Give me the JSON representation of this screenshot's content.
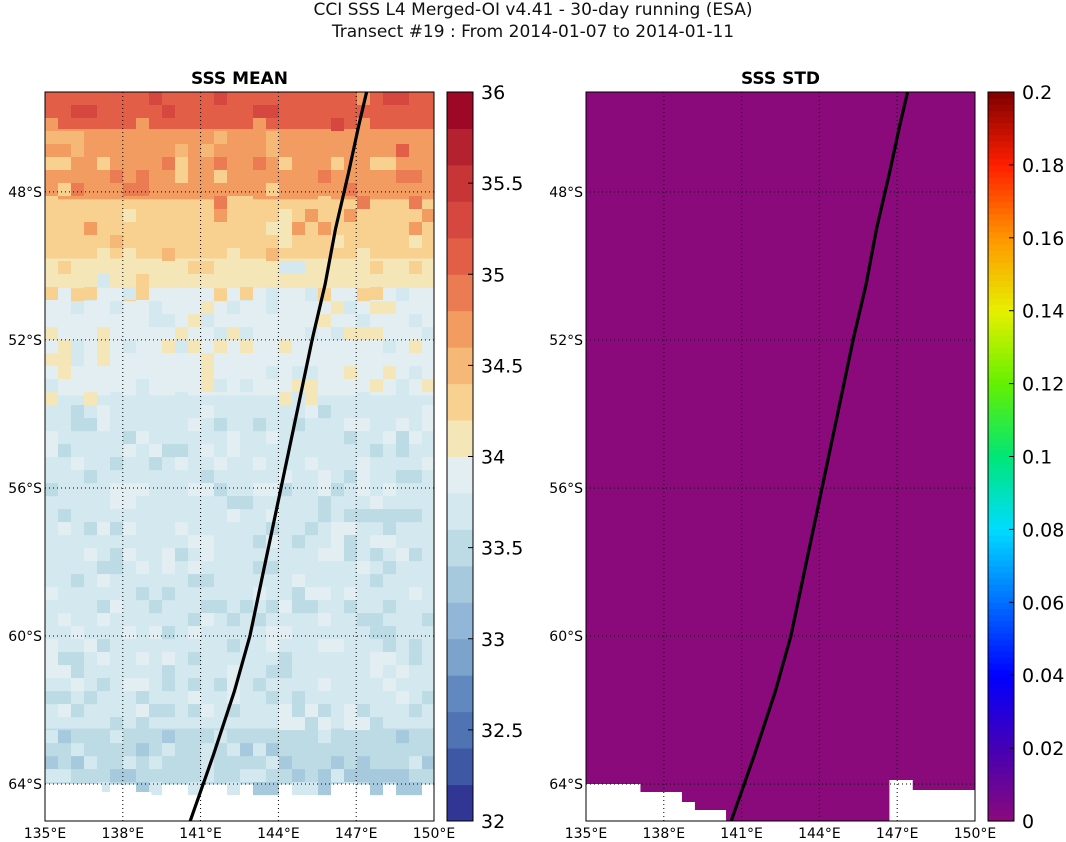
{
  "figure": {
    "title_line1": "CCI SSS L4 Merged-OI v4.41 - 30-day running (ESA)",
    "title_line2": "Transect #19 : From 2014-01-07 to 2014-01-11"
  },
  "chart_data": [
    {
      "type": "heatmap",
      "title": "SSS MEAN",
      "xlim": [
        135,
        150
      ],
      "ylim": [
        -65,
        -45.3
      ],
      "xticks": [
        135,
        138,
        141,
        144,
        147,
        150
      ],
      "xtick_labels": [
        "135°E",
        "138°E",
        "141°E",
        "144°E",
        "147°E",
        "150°E"
      ],
      "yticks": [
        -48,
        -52,
        -56,
        -60,
        -64
      ],
      "ytick_labels": [
        "48°S",
        "52°S",
        "56°S",
        "60°S",
        "64°S"
      ],
      "grid": true,
      "colorbar": {
        "range": [
          32,
          36
        ],
        "ticks": [
          32,
          32.5,
          33,
          33.5,
          34,
          34.5,
          35,
          35.5,
          36
        ],
        "tick_labels": [
          "32",
          "32.5",
          "33",
          "33.5",
          "34",
          "34.5",
          "35",
          "35.5",
          "36"
        ],
        "colormap": "RdYlBu_r",
        "levels": 20
      },
      "salinity_zones_by_latitude": [
        {
          "lat_from": -45.3,
          "lat_to": -46.3,
          "value": 35.0
        },
        {
          "lat_from": -46.3,
          "lat_to": -47.0,
          "value": 34.8
        },
        {
          "lat_from": -47.0,
          "lat_to": -48.2,
          "value": 34.6
        },
        {
          "lat_from": -48.2,
          "lat_to": -49.0,
          "value": 34.4
        },
        {
          "lat_from": -49.0,
          "lat_to": -49.8,
          "value": 34.2
        },
        {
          "lat_from": -49.8,
          "lat_to": -50.6,
          "value": 34.0
        },
        {
          "lat_from": -50.6,
          "lat_to": -53.5,
          "value": 33.85
        },
        {
          "lat_from": -53.5,
          "lat_to": -62.5,
          "value": 33.7
        },
        {
          "lat_from": -62.5,
          "lat_to": -64.0,
          "value": 33.5
        }
      ],
      "land_mask_lat": -64.0
    },
    {
      "type": "heatmap",
      "title": "SSS STD",
      "xlim": [
        135,
        150
      ],
      "ylim": [
        -65,
        -45.3
      ],
      "xticks": [
        135,
        138,
        141,
        144,
        147,
        150
      ],
      "xtick_labels": [
        "135°E",
        "138°E",
        "141°E",
        "144°E",
        "147°E",
        "150°E"
      ],
      "yticks": [
        -48,
        -52,
        -56,
        -60,
        -64
      ],
      "ytick_labels": [
        "48°S",
        "52°S",
        "56°S",
        "60°S",
        "64°S"
      ],
      "grid": true,
      "value_everywhere": 0,
      "colorbar": {
        "range": [
          0,
          0.2
        ],
        "ticks": [
          0,
          0.02,
          0.04,
          0.06,
          0.08,
          0.1,
          0.12,
          0.14,
          0.16,
          0.18,
          0.2
        ],
        "tick_labels": [
          "0",
          "0.02",
          "0.04",
          "0.06",
          "0.08",
          "0.1",
          "0.12",
          "0.14",
          "0.16",
          "0.18",
          "0.2"
        ],
        "colormap": "jet-purple"
      },
      "land_mask_lat": -64.0
    }
  ],
  "transect": {
    "lon": [
      140.6,
      141.5,
      142.3,
      142.9,
      143.5,
      144.1,
      144.7,
      145.3,
      145.8,
      146.2,
      146.7,
      147.1,
      147.4
    ],
    "lat": [
      -65.0,
      -63.2,
      -61.5,
      -60.0,
      -58.0,
      -56.0,
      -54.0,
      -52.0,
      -50.5,
      -49.0,
      -47.5,
      -46.2,
      -45.3
    ]
  },
  "colors": {
    "rdylbu": [
      "#313695",
      "#3f58a6",
      "#4f73b3",
      "#6289bf",
      "#7ba3cc",
      "#91b6d7",
      "#a6c9de",
      "#bcdbe5",
      "#d3e8ef",
      "#e3eef3",
      "#f5e6b8",
      "#f8d08f",
      "#f6b876",
      "#f39c61",
      "#eb7b53",
      "#e25e47",
      "#d6483f",
      "#c83537",
      "#b4212f",
      "#9e0827"
    ],
    "std_fill": "#8a0a7c",
    "land": "#ffffff",
    "transect": "#000000"
  }
}
